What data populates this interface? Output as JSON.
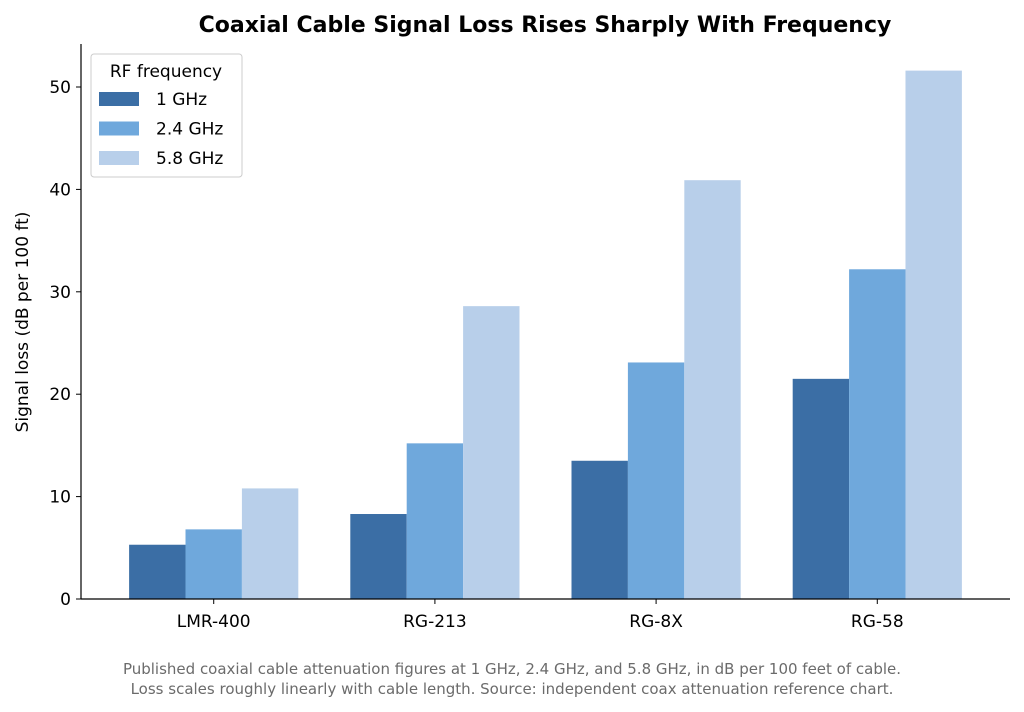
{
  "chart_data": {
    "type": "bar",
    "title": "Coaxial Cable Signal Loss Rises Sharply With Frequency",
    "ylabel": "Signal loss (dB per 100 ft)",
    "xlabel": "",
    "categories": [
      "LMR-400",
      "RG-213",
      "RG-8X",
      "RG-58"
    ],
    "series": [
      {
        "name": "1 GHz",
        "color": "#3b6ea5",
        "values": [
          5.3,
          8.3,
          13.5,
          21.5
        ]
      },
      {
        "name": "2.4 GHz",
        "color": "#6fa8dc",
        "values": [
          6.8,
          15.2,
          23.1,
          32.2
        ]
      },
      {
        "name": "5.8 GHz",
        "color": "#b8cfea",
        "values": [
          10.8,
          28.6,
          40.9,
          51.6
        ]
      }
    ],
    "ylim": [
      0,
      54.2
    ],
    "yticks": [
      0,
      10,
      20,
      30,
      40,
      50
    ],
    "legend": {
      "title": "RF frequency",
      "placement": "top-left"
    },
    "grid": false,
    "caption_lines": [
      "Published coaxial cable attenuation figures at 1 GHz, 2.4 GHz, and 5.8 GHz, in dB per 100 feet of cable.",
      "Loss scales roughly linearly with cable length. Source: independent coax attenuation reference chart."
    ]
  }
}
